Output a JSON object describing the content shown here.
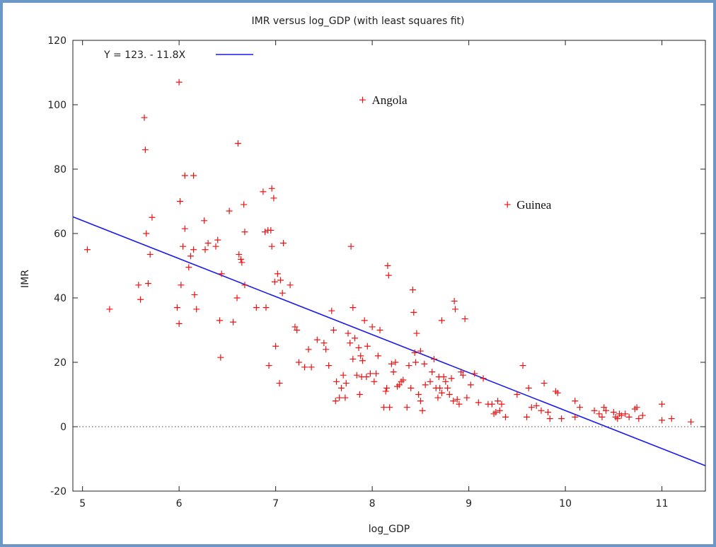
{
  "chart_data": {
    "type": "scatter",
    "title": "IMR versus log_GDP (with least squares fit)",
    "xlabel": "log_GDP",
    "ylabel": "IMR",
    "xlim": [
      4.9,
      11.45
    ],
    "ylim": [
      -20,
      120
    ],
    "xticks": [
      5,
      6,
      7,
      8,
      9,
      10,
      11
    ],
    "yticks": [
      -20,
      0,
      20,
      40,
      60,
      80,
      100,
      120
    ],
    "grid": false,
    "zero_line": true,
    "legend": {
      "position": "top-left",
      "entries": [
        "Y = 123. - 11.8X"
      ]
    },
    "colors": {
      "points": "#ee1111",
      "fit": "#1a1aee",
      "frame": "#6c97c7"
    },
    "fit_line": {
      "intercept": 123,
      "slope": -11.8
    },
    "annotations": [
      {
        "text": "Angola",
        "x": 7.9,
        "y": 101.5
      },
      {
        "text": "Guinea",
        "x": 9.4,
        "y": 69
      }
    ],
    "points": [
      [
        5.05,
        55
      ],
      [
        5.28,
        36.5
      ],
      [
        5.58,
        44
      ],
      [
        5.6,
        39.5
      ],
      [
        5.64,
        96
      ],
      [
        5.65,
        86
      ],
      [
        5.66,
        60
      ],
      [
        5.68,
        44.5
      ],
      [
        5.7,
        53.5
      ],
      [
        5.72,
        65
      ],
      [
        5.98,
        37
      ],
      [
        6.0,
        107
      ],
      [
        6.0,
        32
      ],
      [
        6.01,
        70
      ],
      [
        6.02,
        44
      ],
      [
        6.04,
        56
      ],
      [
        6.06,
        61.5
      ],
      [
        6.06,
        78
      ],
      [
        6.1,
        49.5
      ],
      [
        6.12,
        53
      ],
      [
        6.15,
        55
      ],
      [
        6.15,
        78
      ],
      [
        6.16,
        41
      ],
      [
        6.18,
        36.5
      ],
      [
        6.26,
        64
      ],
      [
        6.27,
        55
      ],
      [
        6.3,
        57
      ],
      [
        6.38,
        56
      ],
      [
        6.4,
        58
      ],
      [
        6.42,
        33
      ],
      [
        6.43,
        21.5
      ],
      [
        6.44,
        47.5
      ],
      [
        6.52,
        67
      ],
      [
        6.56,
        32.5
      ],
      [
        6.6,
        40
      ],
      [
        6.61,
        88
      ],
      [
        6.62,
        53.5
      ],
      [
        6.64,
        52
      ],
      [
        6.65,
        51
      ],
      [
        6.67,
        69
      ],
      [
        6.68,
        60.5
      ],
      [
        6.68,
        44
      ],
      [
        6.8,
        37
      ],
      [
        6.87,
        73
      ],
      [
        6.89,
        60.5
      ],
      [
        6.9,
        37
      ],
      [
        6.92,
        61
      ],
      [
        6.93,
        19
      ],
      [
        6.95,
        61
      ],
      [
        6.96,
        56
      ],
      [
        6.96,
        74
      ],
      [
        6.98,
        71
      ],
      [
        6.99,
        45
      ],
      [
        7.0,
        25
      ],
      [
        7.02,
        47.5
      ],
      [
        7.04,
        13.5
      ],
      [
        7.05,
        45.5
      ],
      [
        7.07,
        41.5
      ],
      [
        7.08,
        57
      ],
      [
        7.15,
        44
      ],
      [
        7.2,
        31
      ],
      [
        7.22,
        30
      ],
      [
        7.24,
        20
      ],
      [
        7.3,
        18.5
      ],
      [
        7.34,
        24
      ],
      [
        7.37,
        18.5
      ],
      [
        7.43,
        27
      ],
      [
        7.5,
        26
      ],
      [
        7.52,
        24
      ],
      [
        7.55,
        19
      ],
      [
        7.58,
        36
      ],
      [
        7.6,
        30
      ],
      [
        7.62,
        8
      ],
      [
        7.63,
        14
      ],
      [
        7.66,
        9
      ],
      [
        7.68,
        12
      ],
      [
        7.7,
        16
      ],
      [
        7.72,
        9
      ],
      [
        7.73,
        13.5
      ],
      [
        7.75,
        29
      ],
      [
        7.77,
        26
      ],
      [
        7.78,
        56
      ],
      [
        7.8,
        37
      ],
      [
        7.8,
        21
      ],
      [
        7.82,
        27.5
      ],
      [
        7.84,
        16
      ],
      [
        7.86,
        24.5
      ],
      [
        7.87,
        10
      ],
      [
        7.88,
        22
      ],
      [
        7.89,
        15.5
      ],
      [
        7.9,
        20.5
      ],
      [
        7.92,
        33
      ],
      [
        7.94,
        15.5
      ],
      [
        7.95,
        25
      ],
      [
        7.98,
        16.5
      ],
      [
        8.0,
        31
      ],
      [
        8.02,
        14
      ],
      [
        8.04,
        16.5
      ],
      [
        8.06,
        22
      ],
      [
        8.08,
        30
      ],
      [
        8.12,
        6
      ],
      [
        8.14,
        11
      ],
      [
        8.15,
        12
      ],
      [
        8.16,
        50
      ],
      [
        8.17,
        47
      ],
      [
        8.18,
        6
      ],
      [
        8.2,
        19.5
      ],
      [
        8.22,
        17
      ],
      [
        8.24,
        20
      ],
      [
        8.26,
        12.5
      ],
      [
        8.28,
        13
      ],
      [
        8.3,
        14
      ],
      [
        8.32,
        14.5
      ],
      [
        8.36,
        6
      ],
      [
        8.38,
        19
      ],
      [
        8.4,
        12
      ],
      [
        8.42,
        42.5
      ],
      [
        8.43,
        35.5
      ],
      [
        8.44,
        23
      ],
      [
        8.45,
        20
      ],
      [
        8.46,
        29
      ],
      [
        8.48,
        10
      ],
      [
        8.5,
        8
      ],
      [
        8.5,
        23.5
      ],
      [
        8.52,
        5
      ],
      [
        8.54,
        19.5
      ],
      [
        8.55,
        13
      ],
      [
        8.6,
        14
      ],
      [
        8.62,
        17
      ],
      [
        8.64,
        21
      ],
      [
        8.66,
        12
      ],
      [
        8.68,
        9
      ],
      [
        8.69,
        15.5
      ],
      [
        8.7,
        12
      ],
      [
        8.72,
        10.5
      ],
      [
        8.72,
        33
      ],
      [
        8.74,
        15.5
      ],
      [
        8.76,
        14
      ],
      [
        8.78,
        12
      ],
      [
        8.8,
        10
      ],
      [
        8.82,
        15
      ],
      [
        8.84,
        8
      ],
      [
        8.85,
        39
      ],
      [
        8.86,
        36.5
      ],
      [
        8.88,
        8.5
      ],
      [
        8.9,
        7
      ],
      [
        8.92,
        17
      ],
      [
        8.94,
        16
      ],
      [
        8.96,
        33.5
      ],
      [
        8.98,
        9
      ],
      [
        9.02,
        13
      ],
      [
        9.06,
        16.5
      ],
      [
        9.1,
        7.5
      ],
      [
        9.15,
        15
      ],
      [
        9.2,
        7
      ],
      [
        9.24,
        7
      ],
      [
        9.26,
        4
      ],
      [
        9.28,
        4.5
      ],
      [
        9.3,
        8
      ],
      [
        9.32,
        5
      ],
      [
        9.34,
        7
      ],
      [
        9.38,
        3
      ],
      [
        9.5,
        10
      ],
      [
        9.56,
        19
      ],
      [
        9.6,
        3
      ],
      [
        9.62,
        12
      ],
      [
        9.65,
        6
      ],
      [
        9.7,
        6.5
      ],
      [
        9.75,
        5
      ],
      [
        9.78,
        13.5
      ],
      [
        9.82,
        4.5
      ],
      [
        9.84,
        2.5
      ],
      [
        9.9,
        11
      ],
      [
        9.92,
        10.5
      ],
      [
        9.96,
        2.5
      ],
      [
        10.1,
        3
      ],
      [
        10.1,
        8
      ],
      [
        10.15,
        6
      ],
      [
        10.3,
        5
      ],
      [
        10.35,
        4
      ],
      [
        10.38,
        3
      ],
      [
        10.4,
        6
      ],
      [
        10.42,
        5
      ],
      [
        10.5,
        4.5
      ],
      [
        10.52,
        3
      ],
      [
        10.54,
        2.5
      ],
      [
        10.56,
        4
      ],
      [
        10.58,
        3.5
      ],
      [
        10.62,
        4
      ],
      [
        10.66,
        3
      ],
      [
        10.72,
        5.5
      ],
      [
        10.74,
        6
      ],
      [
        10.76,
        2.5
      ],
      [
        10.8,
        3.5
      ],
      [
        11.0,
        7
      ],
      [
        11.0,
        2
      ],
      [
        11.1,
        2.5
      ],
      [
        11.3,
        1.5
      ]
    ]
  }
}
